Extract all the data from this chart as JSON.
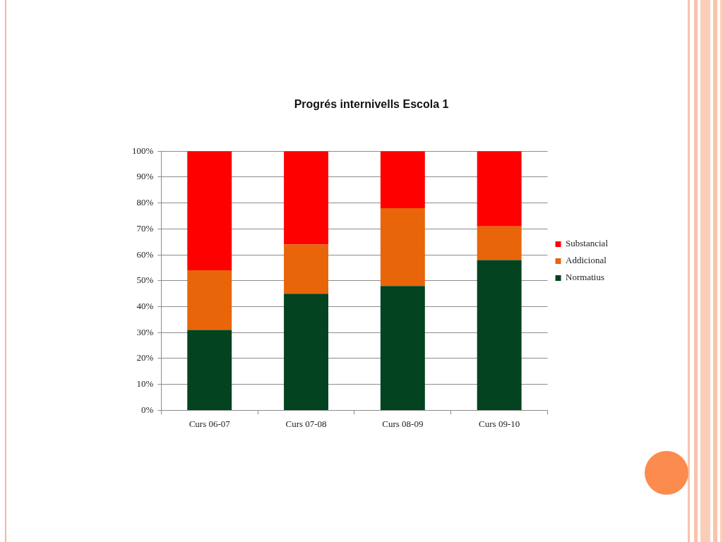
{
  "chart_data": {
    "type": "bar",
    "title": "Progrés internivells Escola 1",
    "categories": [
      "Curs 06-07",
      "Curs 07-08",
      "Curs 08-09",
      "Curs 09-10"
    ],
    "series": [
      {
        "name": "Normatius",
        "color": "#03431f",
        "values": [
          31,
          45,
          48,
          58
        ]
      },
      {
        "name": "Addicional",
        "color": "#e8650a",
        "values": [
          23,
          19,
          30,
          13
        ]
      },
      {
        "name": "Substancial",
        "color": "#ff0000",
        "values": [
          46,
          36,
          22,
          29
        ]
      }
    ],
    "stacked": true,
    "ylim": [
      0,
      100
    ],
    "yticks": [
      {
        "value": 0,
        "label": "0%"
      },
      {
        "value": 10,
        "label": "10%"
      },
      {
        "value": 20,
        "label": "20%"
      },
      {
        "value": 30,
        "label": "30%"
      },
      {
        "value": 40,
        "label": "40%"
      },
      {
        "value": 50,
        "label": "50%"
      },
      {
        "value": 60,
        "label": "60%"
      },
      {
        "value": 70,
        "label": "70%"
      },
      {
        "value": 80,
        "label": "80%"
      },
      {
        "value": 90,
        "label": "90%"
      },
      {
        "value": 100,
        "label": "100%"
      }
    ],
    "grid": "y",
    "legend": "right"
  }
}
